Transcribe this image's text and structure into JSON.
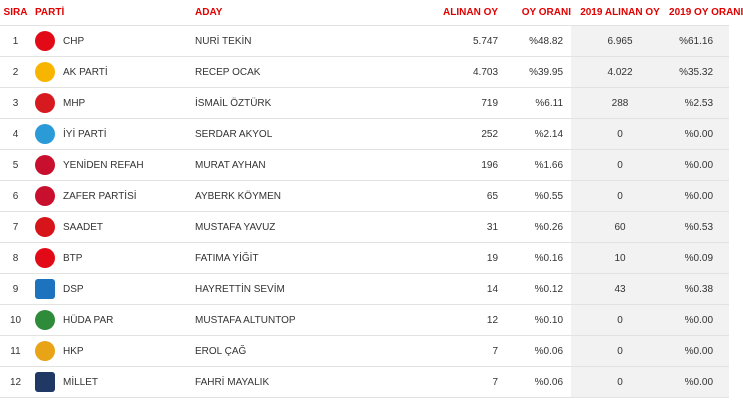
{
  "headers": {
    "rank": "SIRA",
    "party": "PARTİ",
    "candidate": "ADAY",
    "votes": "ALINAN OY",
    "pct": "OY ORANI",
    "votes_2019": "2019 ALINAN OY",
    "pct_2019": "2019 OY ORANI"
  },
  "rows": [
    {
      "rank": "1",
      "party": "CHP",
      "logo": "chp-logo-icon",
      "color": "#e30a17",
      "candidate": "NURİ TEKİN",
      "votes": "5.747",
      "pct": "%48.82",
      "votes_2019": "6.965",
      "pct_2019": "%61.16"
    },
    {
      "rank": "2",
      "party": "AK PARTİ",
      "logo": "ak-parti-logo-icon",
      "color": "#f7b500",
      "candidate": "RECEP OCAK",
      "votes": "4.703",
      "pct": "%39.95",
      "votes_2019": "4.022",
      "pct_2019": "%35.32"
    },
    {
      "rank": "3",
      "party": "MHP",
      "logo": "mhp-logo-icon",
      "color": "#d71920",
      "candidate": "İSMAİL ÖZTÜRK",
      "votes": "719",
      "pct": "%6.11",
      "votes_2019": "288",
      "pct_2019": "%2.53"
    },
    {
      "rank": "4",
      "party": "İYİ PARTİ",
      "logo": "iyi-parti-logo-icon",
      "color": "#2a9bd7",
      "candidate": "SERDAR AKYOL",
      "votes": "252",
      "pct": "%2.14",
      "votes_2019": "0",
      "pct_2019": "%0.00"
    },
    {
      "rank": "5",
      "party": "YENİDEN REFAH",
      "logo": "yeniden-refah-logo-icon",
      "color": "#c8102e",
      "candidate": "MURAT AYHAN",
      "votes": "196",
      "pct": "%1.66",
      "votes_2019": "0",
      "pct_2019": "%0.00"
    },
    {
      "rank": "6",
      "party": "ZAFER PARTİSİ",
      "logo": "zafer-partisi-logo-icon",
      "color": "#c8102e",
      "candidate": "AYBERK KÖYMEN",
      "votes": "65",
      "pct": "%0.55",
      "votes_2019": "0",
      "pct_2019": "%0.00"
    },
    {
      "rank": "7",
      "party": "SAADET",
      "logo": "saadet-logo-icon",
      "color": "#d7141a",
      "candidate": "MUSTAFA YAVUZ",
      "votes": "31",
      "pct": "%0.26",
      "votes_2019": "60",
      "pct_2019": "%0.53"
    },
    {
      "rank": "8",
      "party": "BTP",
      "logo": "btp-logo-icon",
      "color": "#e30a17",
      "candidate": "FATIMA YİĞİT",
      "votes": "19",
      "pct": "%0.16",
      "votes_2019": "10",
      "pct_2019": "%0.09"
    },
    {
      "rank": "9",
      "party": "DSP",
      "logo": "dsp-logo-icon",
      "color": "#1e73be",
      "candidate": "HAYRETTİN SEVİM",
      "votes": "14",
      "pct": "%0.12",
      "votes_2019": "43",
      "pct_2019": "%0.38"
    },
    {
      "rank": "10",
      "party": "HÜDA PAR",
      "logo": "huda-par-logo-icon",
      "color": "#2e8b3a",
      "candidate": "MUSTAFA ALTUNTOP",
      "votes": "12",
      "pct": "%0.10",
      "votes_2019": "0",
      "pct_2019": "%0.00"
    },
    {
      "rank": "11",
      "party": "HKP",
      "logo": "hkp-logo-icon",
      "color": "#e8a317",
      "candidate": "EROL ÇAĞ",
      "votes": "7",
      "pct": "%0.06",
      "votes_2019": "0",
      "pct_2019": "%0.00"
    },
    {
      "rank": "12",
      "party": "MİLLET",
      "logo": "millet-logo-icon",
      "color": "#1f3864",
      "candidate": "FAHRİ MAYALIK",
      "votes": "7",
      "pct": "%0.06",
      "votes_2019": "0",
      "pct_2019": "%0.00"
    }
  ]
}
